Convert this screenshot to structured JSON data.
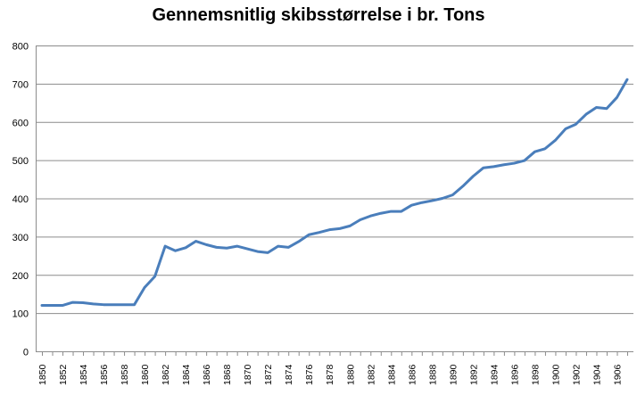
{
  "chart_data": {
    "type": "line",
    "title": "Gennemsnitlig skibsstørrelse i br. Tons",
    "xlabel": "",
    "ylabel": "",
    "ylim": [
      0,
      800
    ],
    "yticks": [
      0,
      100,
      200,
      300,
      400,
      500,
      600,
      700,
      800
    ],
    "xticks": [
      1850,
      1852,
      1854,
      1856,
      1858,
      1860,
      1862,
      1864,
      1866,
      1868,
      1870,
      1872,
      1874,
      1876,
      1878,
      1880,
      1882,
      1884,
      1886,
      1888,
      1890,
      1892,
      1894,
      1896,
      1898,
      1900,
      1902,
      1904,
      1906
    ],
    "grid": true,
    "legend": "none",
    "line_color": "#4a7ebb",
    "x": [
      1850,
      1851,
      1852,
      1853,
      1854,
      1855,
      1856,
      1857,
      1858,
      1859,
      1860,
      1861,
      1862,
      1863,
      1864,
      1865,
      1866,
      1867,
      1868,
      1869,
      1870,
      1871,
      1872,
      1873,
      1874,
      1875,
      1876,
      1877,
      1878,
      1879,
      1880,
      1881,
      1882,
      1883,
      1884,
      1885,
      1886,
      1887,
      1888,
      1889,
      1890,
      1891,
      1892,
      1893,
      1894,
      1895,
      1896,
      1897,
      1898,
      1899,
      1900,
      1901,
      1902,
      1903,
      1904,
      1905,
      1906,
      1907
    ],
    "y": [
      120,
      120,
      120,
      128,
      127,
      124,
      122,
      122,
      122,
      122,
      167,
      196,
      275,
      263,
      271,
      288,
      279,
      272,
      270,
      275,
      268,
      261,
      258,
      275,
      272,
      287,
      305,
      311,
      318,
      321,
      328,
      344,
      354,
      361,
      366,
      366,
      382,
      389,
      394,
      400,
      409,
      432,
      458,
      480,
      483,
      488,
      492,
      499,
      522,
      530,
      552,
      582,
      594,
      620,
      638,
      635,
      664,
      711
    ]
  }
}
